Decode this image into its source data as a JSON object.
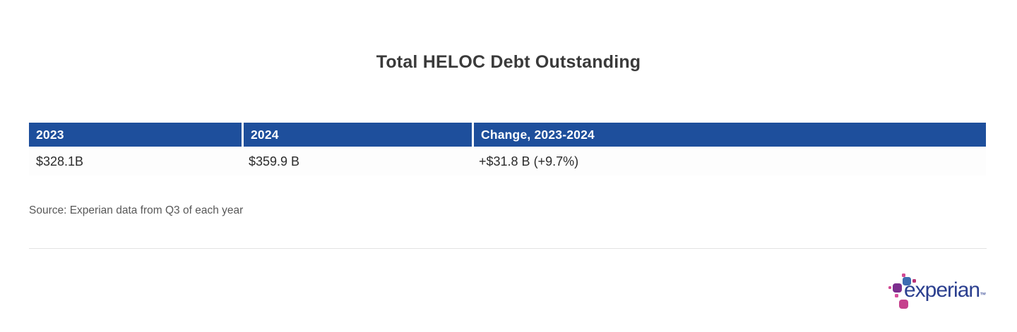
{
  "page": {
    "title": "Total HELOC Debt Outstanding",
    "source_note": "Source: Experian data from Q3 of each year"
  },
  "table": {
    "headers": [
      "2023",
      "2024",
      "Change, 2023-2024"
    ],
    "row": [
      "$328.1B",
      "$359.9 B",
      "+$31.8 B (+9.7%)"
    ]
  },
  "logo": {
    "wordmark": "experian",
    "trademark": "™"
  },
  "colors": {
    "header_bg": "#1e4f9c",
    "title_text": "#3a3a3a",
    "body_text": "#2b2b2b",
    "source_text": "#585858",
    "divider": "#e3e3e3",
    "logo_blue": "#3e6cb1",
    "logo_purple": "#7c2e8e",
    "logo_magenta": "#c5418d",
    "logo_pink": "#d74f9d",
    "wordmark_color": "#2b3f8f"
  },
  "chart_data": {
    "type": "table",
    "title": "Total HELOC Debt Outstanding",
    "columns": [
      "2023",
      "2024",
      "Change, 2023-2024"
    ],
    "rows": [
      [
        "$328.1B",
        "$359.9 B",
        "+$31.8 B (+9.7%)"
      ]
    ],
    "values": {
      "debt_2023_billions_usd": 328.1,
      "debt_2024_billions_usd": 359.9,
      "change_billions_usd": 31.8,
      "change_percent": 9.7
    },
    "source": "Source: Experian data from Q3 of each year",
    "layout": {
      "header_style": "solid-blue",
      "legend": "none",
      "grid": "off"
    }
  }
}
